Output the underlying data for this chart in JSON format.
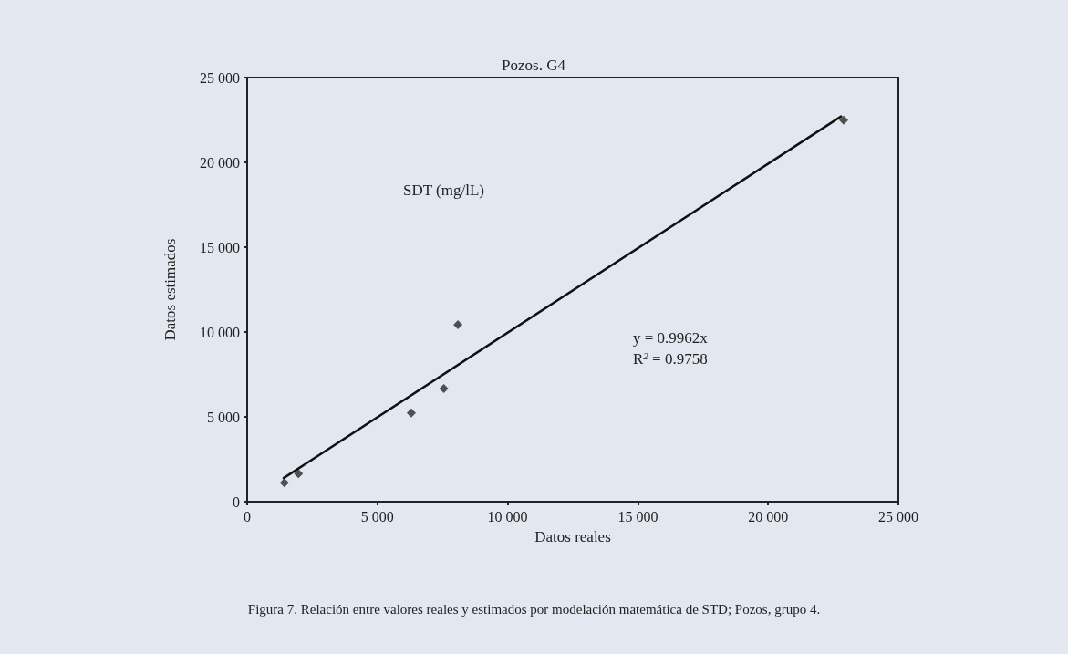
{
  "chart_data": {
    "type": "scatter",
    "title": "Pozos. G4",
    "xlabel": "Datos reales",
    "ylabel": "Datos estimados",
    "xlim": [
      0,
      25000
    ],
    "xticks": [
      0,
      {
        "value": 5000,
        "label": "5 000"
      },
      {
        "value": 10000,
        "label": "10 000"
      },
      {
        "value": 15000,
        "label": "15 000"
      },
      {
        "value": 20000,
        "label": "20 000"
      },
      {
        "value": 25000,
        "label": "25 000"
      }
    ],
    "ylim": [
      0,
      25000
    ],
    "yticks": [
      0,
      {
        "value": 5000,
        "label": "5 000"
      },
      {
        "value": 10000,
        "label": "10 000"
      },
      {
        "value": 15000,
        "label": "15 000"
      },
      {
        "value": 20000,
        "label": "20 000"
      },
      {
        "value": 25000,
        "label": "25 000"
      }
    ],
    "grid": false,
    "marker": "diamond",
    "series": [
      {
        "type": "scatter",
        "color": "#2b2b2b",
        "x": [
          1430,
          1970,
          6300,
          7550,
          8090,
          22900
        ],
        "values": [
          1110,
          1650,
          5230,
          6670,
          10430,
          22490
        ]
      },
      {
        "type": "line",
        "color": "#111111",
        "x": [
          1400,
          22800
        ],
        "values": [
          1390,
          22710
        ],
        "marker": "none",
        "line_style": "solid"
      }
    ],
    "annotations": [
      "SDT (mg/lL)",
      "y = 0.9962x",
      "R$^{2}$ = 0.9758",
      "Figura 7. Relación entre valores reales y estimados por modelación matemática de STD; Pozos, grupo 4."
    ]
  }
}
